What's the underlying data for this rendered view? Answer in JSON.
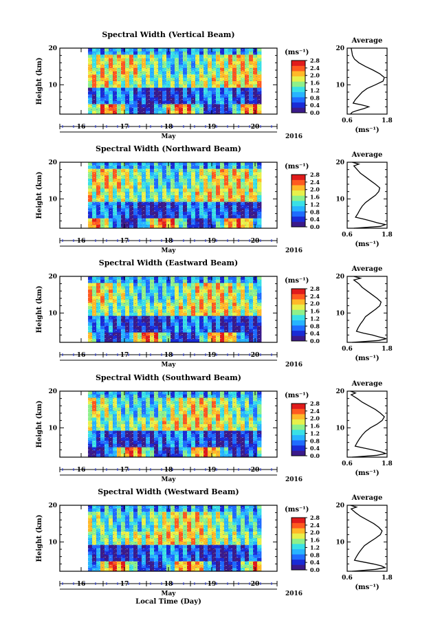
{
  "figure": {
    "xlabel": "Local Time (Day)",
    "month_label": "May",
    "year_label": "2016",
    "colorbar_unit": "(ms⁻¹)",
    "average_title": "Average",
    "average_xlabel": "(ms⁻¹)"
  },
  "chart_data": [
    {
      "type": "heatmap",
      "title": "Spectral Width (Vertical Beam)",
      "ylabel": "Height (km)",
      "xticks": [
        "16",
        "17",
        "18",
        "19",
        "20"
      ],
      "yticks": [
        "10",
        "20"
      ],
      "ylim": [
        2,
        20
      ],
      "colorbar": {
        "min": 0.0,
        "max": 2.8,
        "ticks": [
          "0.0",
          "0.4",
          "0.8",
          "1.2",
          "1.6",
          "2.0",
          "2.4",
          "2.8"
        ]
      },
      "average_profile": {
        "xlim": [
          0.6,
          1.8
        ],
        "xticks": [
          "0.6",
          "1.8"
        ],
        "points": [
          [
            0.72,
            20
          ],
          [
            0.74,
            19
          ],
          [
            0.76,
            18
          ],
          [
            0.82,
            17
          ],
          [
            0.95,
            16
          ],
          [
            1.15,
            15
          ],
          [
            1.38,
            14
          ],
          [
            1.58,
            13
          ],
          [
            1.72,
            12
          ],
          [
            1.68,
            11
          ],
          [
            1.45,
            10
          ],
          [
            1.2,
            9
          ],
          [
            1.05,
            8
          ],
          [
            0.95,
            7
          ],
          [
            0.85,
            6
          ],
          [
            0.78,
            5
          ],
          [
            1.05,
            4.5
          ],
          [
            1.25,
            4
          ],
          [
            1.1,
            3.5
          ],
          [
            0.9,
            3
          ],
          [
            0.75,
            2.5
          ],
          [
            0.7,
            2
          ]
        ]
      }
    },
    {
      "type": "heatmap",
      "title": "Spectral Width (Northward Beam)",
      "ylabel": "Height (km)",
      "xticks": [
        "16",
        "17",
        "18",
        "19",
        "20"
      ],
      "yticks": [
        "10",
        "20"
      ],
      "ylim": [
        2,
        20
      ],
      "colorbar": {
        "min": 0.0,
        "max": 2.8,
        "ticks": [
          "0.0",
          "0.4",
          "0.8",
          "1.2",
          "1.6",
          "2.0",
          "2.4",
          "2.8"
        ]
      },
      "average_profile": {
        "xlim": [
          0.6,
          1.8
        ],
        "xticks": [
          "0.6",
          "1.8"
        ],
        "points": [
          [
            0.75,
            20
          ],
          [
            0.95,
            19.5
          ],
          [
            0.8,
            19
          ],
          [
            0.9,
            18
          ],
          [
            1.0,
            17
          ],
          [
            1.15,
            16
          ],
          [
            1.3,
            15
          ],
          [
            1.45,
            14
          ],
          [
            1.58,
            13
          ],
          [
            1.55,
            12
          ],
          [
            1.45,
            11
          ],
          [
            1.3,
            10
          ],
          [
            1.15,
            9
          ],
          [
            1.05,
            8
          ],
          [
            0.98,
            7
          ],
          [
            0.92,
            6
          ],
          [
            0.85,
            5
          ],
          [
            1.1,
            4.5
          ],
          [
            1.3,
            4
          ],
          [
            1.5,
            3.5
          ],
          [
            1.75,
            3
          ],
          [
            1.6,
            2.5
          ],
          [
            0.8,
            2
          ]
        ]
      }
    },
    {
      "type": "heatmap",
      "title": "Spectral Width (Eastward Beam)",
      "ylabel": "Height (km)",
      "xticks": [
        "16",
        "17",
        "18",
        "19",
        "20"
      ],
      "yticks": [
        "10",
        "20"
      ],
      "ylim": [
        2,
        20
      ],
      "colorbar": {
        "min": 0.0,
        "max": 2.8,
        "ticks": [
          "0.0",
          "0.4",
          "0.8",
          "1.2",
          "1.6",
          "2.0",
          "2.4",
          "2.8"
        ]
      },
      "average_profile": {
        "xlim": [
          0.6,
          1.8
        ],
        "xticks": [
          "0.6",
          "1.8"
        ],
        "points": [
          [
            0.8,
            20
          ],
          [
            1.0,
            19.5
          ],
          [
            0.8,
            19
          ],
          [
            0.95,
            18
          ],
          [
            1.05,
            17
          ],
          [
            1.2,
            16
          ],
          [
            1.35,
            15
          ],
          [
            1.5,
            14
          ],
          [
            1.62,
            13
          ],
          [
            1.58,
            12
          ],
          [
            1.45,
            11
          ],
          [
            1.3,
            10
          ],
          [
            1.15,
            9
          ],
          [
            1.08,
            8
          ],
          [
            1.0,
            7
          ],
          [
            0.93,
            6
          ],
          [
            0.88,
            5
          ],
          [
            1.1,
            4.5
          ],
          [
            1.35,
            4
          ],
          [
            1.55,
            3.5
          ],
          [
            1.78,
            3
          ],
          [
            1.55,
            2.5
          ],
          [
            0.75,
            2
          ]
        ]
      }
    },
    {
      "type": "heatmap",
      "title": "Spectral Width (Southward Beam)",
      "ylabel": "Height (km)",
      "xticks": [
        "16",
        "17",
        "18",
        "19",
        "20"
      ],
      "yticks": [
        "10",
        "20"
      ],
      "ylim": [
        2,
        20
      ],
      "colorbar": {
        "min": 0.0,
        "max": 2.8,
        "ticks": [
          "0.0",
          "0.4",
          "0.8",
          "1.2",
          "1.6",
          "2.0",
          "2.4",
          "2.8"
        ]
      },
      "average_profile": {
        "xlim": [
          0.6,
          1.8
        ],
        "xticks": [
          "0.6",
          "1.8"
        ],
        "points": [
          [
            0.7,
            20
          ],
          [
            0.85,
            19.5
          ],
          [
            0.72,
            19
          ],
          [
            0.9,
            18
          ],
          [
            1.05,
            17
          ],
          [
            1.25,
            16
          ],
          [
            1.45,
            15
          ],
          [
            1.6,
            14
          ],
          [
            1.72,
            13
          ],
          [
            1.65,
            12
          ],
          [
            1.5,
            11
          ],
          [
            1.3,
            10
          ],
          [
            1.15,
            9
          ],
          [
            1.05,
            8
          ],
          [
            0.97,
            7
          ],
          [
            0.9,
            6
          ],
          [
            0.84,
            5
          ],
          [
            1.1,
            4.5
          ],
          [
            1.35,
            4
          ],
          [
            1.6,
            3.5
          ],
          [
            1.76,
            3
          ],
          [
            1.5,
            2.5
          ],
          [
            0.75,
            2
          ]
        ]
      }
    },
    {
      "type": "heatmap",
      "title": "Spectral Width (Westward Beam)",
      "ylabel": "Height (km)",
      "xticks": [
        "16",
        "17",
        "18",
        "19",
        "20"
      ],
      "yticks": [
        "10",
        "20"
      ],
      "ylim": [
        2,
        20
      ],
      "colorbar": {
        "min": 0.0,
        "max": 2.8,
        "ticks": [
          "0.0",
          "0.4",
          "0.8",
          "1.2",
          "1.6",
          "2.0",
          "2.4",
          "2.8"
        ]
      },
      "average_profile": {
        "xlim": [
          0.6,
          1.8
        ],
        "xticks": [
          "0.6",
          "1.8"
        ],
        "points": [
          [
            0.7,
            20
          ],
          [
            0.88,
            19.5
          ],
          [
            0.72,
            19
          ],
          [
            0.85,
            18
          ],
          [
            1.0,
            17
          ],
          [
            1.2,
            16
          ],
          [
            1.4,
            15
          ],
          [
            1.55,
            14
          ],
          [
            1.65,
            13
          ],
          [
            1.6,
            12
          ],
          [
            1.45,
            11
          ],
          [
            1.28,
            10
          ],
          [
            1.12,
            9
          ],
          [
            1.03,
            8
          ],
          [
            0.95,
            7
          ],
          [
            0.88,
            6
          ],
          [
            0.82,
            5
          ],
          [
            1.1,
            4.5
          ],
          [
            1.38,
            4
          ],
          [
            1.62,
            3.5
          ],
          [
            1.74,
            3
          ],
          [
            1.45,
            2.5
          ],
          [
            0.75,
            2
          ]
        ]
      }
    }
  ]
}
